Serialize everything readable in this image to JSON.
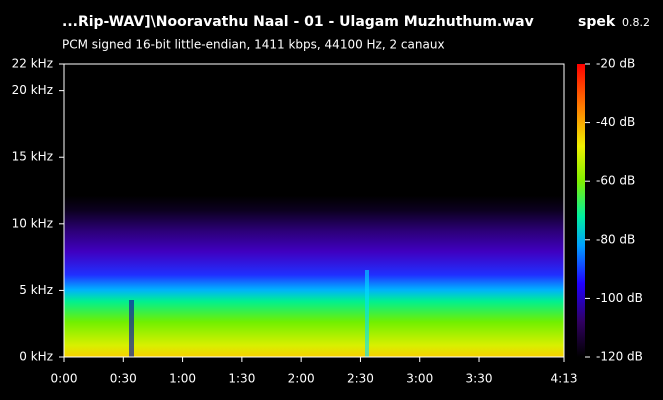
{
  "chart_data": {
    "type": "spectrogram",
    "title": "...Rip-WAV]\\Nooravathu Naal - 01 - Ulagam Muzhuthum.wav",
    "app_name": "spek",
    "app_version": "0.8.2",
    "subtitle": "PCM signed 16-bit little-endian, 1411 kbps, 44100 Hz, 2 canaux",
    "xlim": [
      0,
      253
    ],
    "xticks": [
      {
        "value": 0,
        "label": "0:00"
      },
      {
        "value": 30,
        "label": "0:30"
      },
      {
        "value": 60,
        "label": "1:00"
      },
      {
        "value": 90,
        "label": "1:30"
      },
      {
        "value": 120,
        "label": "2:00"
      },
      {
        "value": 150,
        "label": "2:30"
      },
      {
        "value": 180,
        "label": "3:00"
      },
      {
        "value": 210,
        "label": "3:30"
      },
      {
        "value": 253,
        "label": "4:13"
      }
    ],
    "ylim": [
      0,
      22
    ],
    "yticks": [
      {
        "value": 0,
        "label": "0 kHz"
      },
      {
        "value": 5,
        "label": "5 kHz"
      },
      {
        "value": 10,
        "label": "10 kHz"
      },
      {
        "value": 15,
        "label": "15 kHz"
      },
      {
        "value": 20,
        "label": "20 kHz"
      },
      {
        "value": 22,
        "label": "22 kHz"
      }
    ],
    "colorbar_lim": [
      -120,
      -20
    ],
    "colorbar_ticks": [
      {
        "value": -20,
        "label": "-20 dB"
      },
      {
        "value": -40,
        "label": "-40 dB"
      },
      {
        "value": -60,
        "label": "-60 dB"
      },
      {
        "value": -80,
        "label": "-80 dB"
      },
      {
        "value": -100,
        "label": "-100 dB"
      },
      {
        "value": -120,
        "label": "-120 dB"
      }
    ]
  }
}
